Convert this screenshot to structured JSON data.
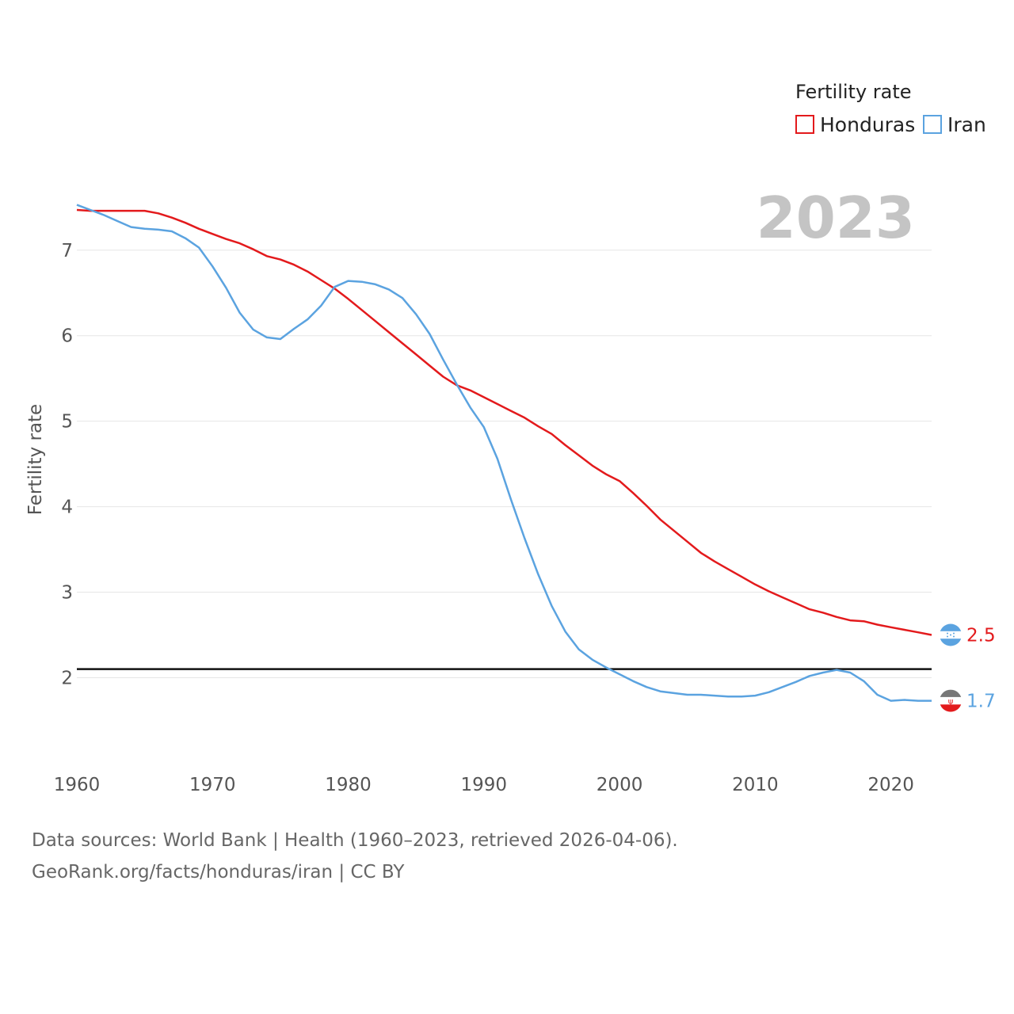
{
  "legend": {
    "title": "Fertility rate",
    "items": [
      {
        "name": "Honduras",
        "color": "#e31a1c"
      },
      {
        "name": "Iran",
        "color": "#5ba3e0"
      }
    ]
  },
  "year_label": "2023",
  "end_labels": {
    "honduras": "2.5",
    "iran": "1.7"
  },
  "source_lines": [
    "Data sources: World Bank | Health (1960–2023, retrieved 2026-04-06).",
    "GeoRank.org/facts/honduras/iran | CC BY"
  ],
  "chart_data": {
    "type": "line",
    "title": "Fertility rate",
    "xlabel": "",
    "ylabel": "Fertility rate",
    "xlim": [
      1960,
      2023
    ],
    "ylim": [
      1.3,
      7.6
    ],
    "x_ticks": [
      1960,
      1970,
      1980,
      1990,
      2000,
      2010,
      2020
    ],
    "y_ticks": [
      2,
      3,
      4,
      5,
      6,
      7
    ],
    "reference_line": 2.1,
    "x": [
      1960,
      1961,
      1962,
      1963,
      1964,
      1965,
      1966,
      1967,
      1968,
      1969,
      1970,
      1971,
      1972,
      1973,
      1974,
      1975,
      1976,
      1977,
      1978,
      1979,
      1980,
      1981,
      1982,
      1983,
      1984,
      1985,
      1986,
      1987,
      1988,
      1989,
      1990,
      1991,
      1992,
      1993,
      1994,
      1995,
      1996,
      1997,
      1998,
      1999,
      2000,
      2001,
      2002,
      2003,
      2004,
      2005,
      2006,
      2007,
      2008,
      2009,
      2010,
      2011,
      2012,
      2013,
      2014,
      2015,
      2016,
      2017,
      2018,
      2019,
      2020,
      2021,
      2022,
      2023
    ],
    "series": [
      {
        "name": "Honduras",
        "color": "#e31a1c",
        "values": [
          7.47,
          7.46,
          7.46,
          7.46,
          7.46,
          7.46,
          7.43,
          7.38,
          7.32,
          7.25,
          7.19,
          7.13,
          7.08,
          7.01,
          6.93,
          6.89,
          6.83,
          6.75,
          6.65,
          6.55,
          6.43,
          6.3,
          6.17,
          6.04,
          5.91,
          5.78,
          5.65,
          5.52,
          5.42,
          5.36,
          5.28,
          5.2,
          5.12,
          5.04,
          4.94,
          4.85,
          4.72,
          4.6,
          4.48,
          4.38,
          4.3,
          4.16,
          4.01,
          3.85,
          3.72,
          3.59,
          3.46,
          3.36,
          3.27,
          3.18,
          3.09,
          3.01,
          2.94,
          2.87,
          2.8,
          2.76,
          2.71,
          2.67,
          2.66,
          2.62,
          2.59,
          2.56,
          2.53,
          2.5
        ]
      },
      {
        "name": "Iran",
        "color": "#5ba3e0",
        "values": [
          7.53,
          7.47,
          7.41,
          7.34,
          7.27,
          7.25,
          7.24,
          7.22,
          7.14,
          7.03,
          6.81,
          6.56,
          6.27,
          6.07,
          5.98,
          5.96,
          6.08,
          6.19,
          6.35,
          6.57,
          6.64,
          6.63,
          6.6,
          6.54,
          6.44,
          6.25,
          6.02,
          5.72,
          5.43,
          5.16,
          4.93,
          4.56,
          4.08,
          3.63,
          3.21,
          2.84,
          2.54,
          2.33,
          2.21,
          2.12,
          2.04,
          1.96,
          1.89,
          1.84,
          1.82,
          1.8,
          1.8,
          1.79,
          1.78,
          1.78,
          1.79,
          1.83,
          1.89,
          1.95,
          2.02,
          2.06,
          2.09,
          2.06,
          1.96,
          1.8,
          1.73,
          1.74,
          1.73,
          1.73
        ]
      }
    ]
  }
}
